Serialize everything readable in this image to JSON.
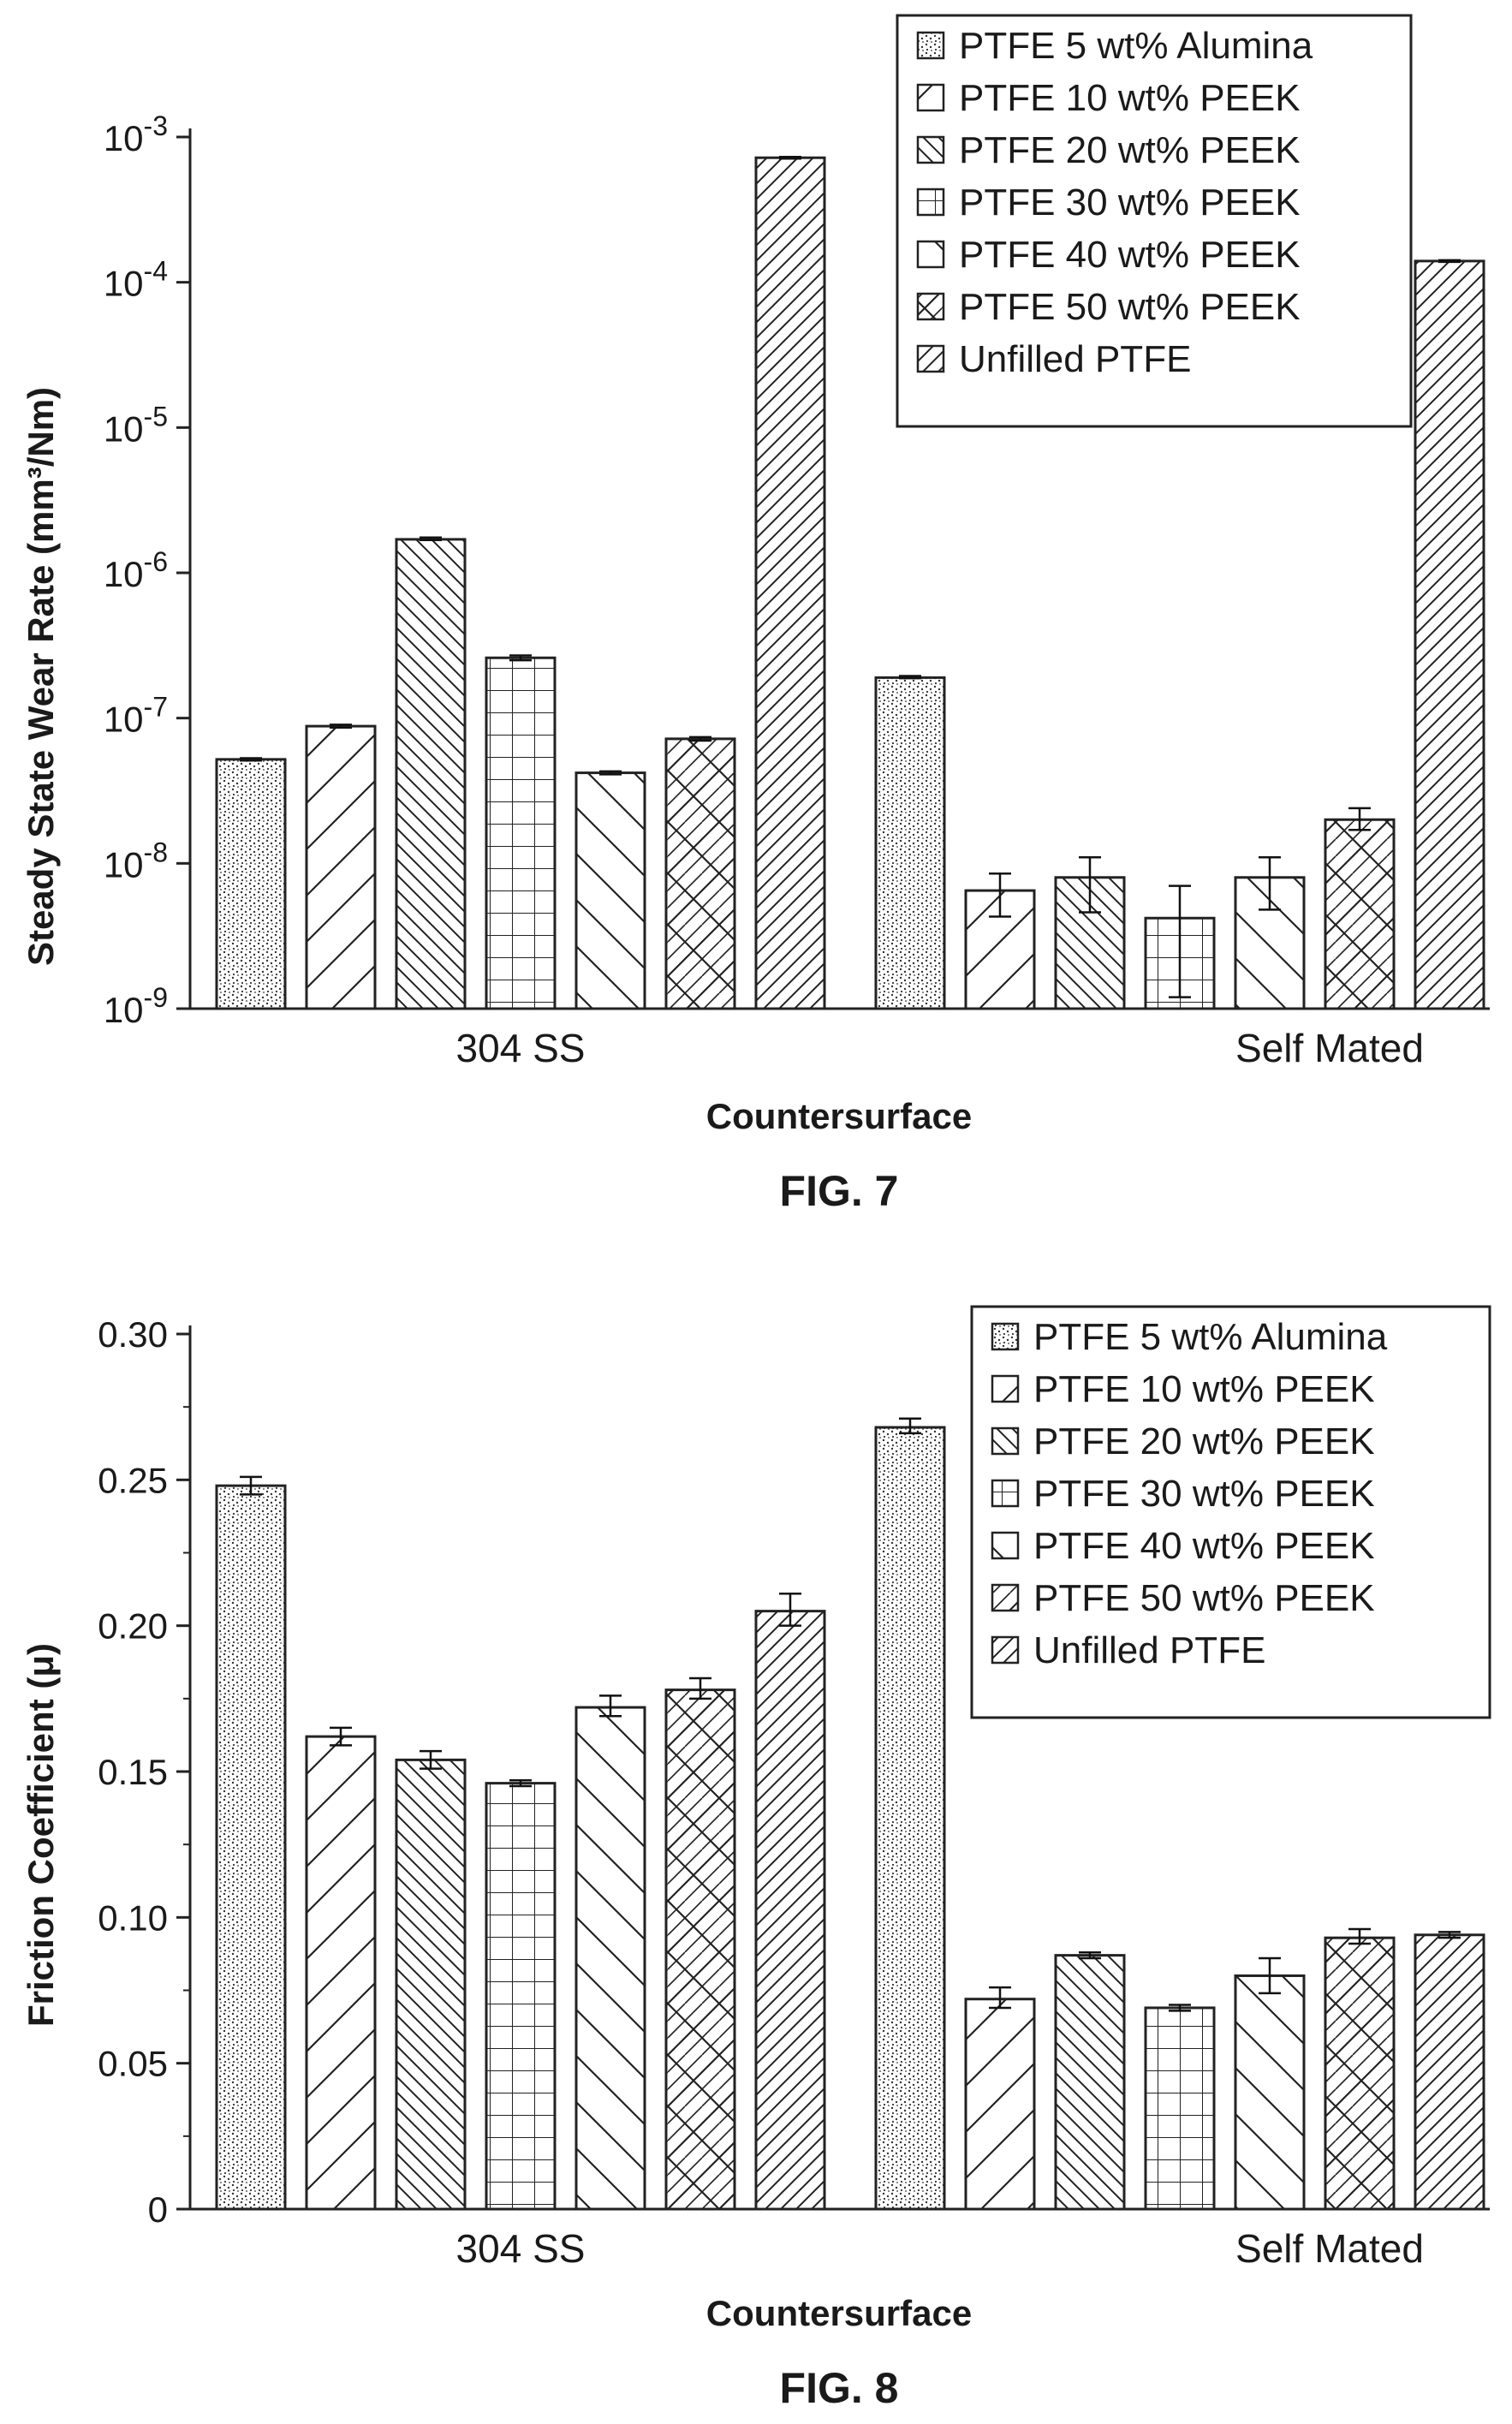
{
  "figures": [
    {
      "label": "FIG. 7"
    },
    {
      "label": "FIG. 8"
    }
  ],
  "chart_data": [
    {
      "type": "bar",
      "figure": "FIG. 7",
      "scale": "log",
      "ylabel": "Steady State Wear Rate (mm³/Nm)",
      "xlabel": "Countersurface",
      "ylim": [
        1e-09,
        0.001
      ],
      "y_ticks": [
        {
          "value": 1e-09,
          "base": "10",
          "exp": "-9"
        },
        {
          "value": 1e-08,
          "base": "10",
          "exp": "-8"
        },
        {
          "value": 1e-07,
          "base": "10",
          "exp": "-7"
        },
        {
          "value": 1e-06,
          "base": "10",
          "exp": "-6"
        },
        {
          "value": 1e-05,
          "base": "10",
          "exp": "-5"
        },
        {
          "value": 0.0001,
          "base": "10",
          "exp": "-4"
        },
        {
          "value": 0.001,
          "base": "10",
          "exp": "-3"
        }
      ],
      "categories": [
        "304 SS",
        "Self Mated"
      ],
      "legend_position": "top-right",
      "series": [
        {
          "name": "PTFE 5 wt% Alumina",
          "pattern": "dots",
          "values": [
            5.2e-08,
            1.9e-07
          ],
          "err_low": [
            5.1e-08,
            1.88e-07
          ],
          "err_high": [
            5.3e-08,
            1.95e-07
          ]
        },
        {
          "name": "PTFE 10 wt% PEEK",
          "pattern": "diag-up",
          "values": [
            8.8e-08,
            6.5e-09
          ],
          "err_low": [
            8.6e-08,
            4.3e-09
          ],
          "err_high": [
            9e-08,
            8.5e-09
          ]
        },
        {
          "name": "PTFE 20 wt% PEEK",
          "pattern": "diag-down-dense",
          "values": [
            1.7e-06,
            8e-09
          ],
          "err_low": [
            1.68e-06,
            4.6e-09
          ],
          "err_high": [
            1.75e-06,
            1.1e-08
          ]
        },
        {
          "name": "PTFE 30 wt% PEEK",
          "pattern": "grid",
          "values": [
            2.6e-07,
            4.2e-09
          ],
          "err_low": [
            2.5e-07,
            1.2e-09
          ],
          "err_high": [
            2.7e-07,
            7e-09
          ]
        },
        {
          "name": "PTFE 40 wt% PEEK",
          "pattern": "diag-down",
          "values": [
            4.2e-08,
            8e-09
          ],
          "err_low": [
            4.1e-08,
            4.8e-09
          ],
          "err_high": [
            4.3e-08,
            1.1e-08
          ]
        },
        {
          "name": "PTFE 50 wt% PEEK",
          "pattern": "crosshatch",
          "values": [
            7.2e-08,
            2e-08
          ],
          "err_low": [
            7e-08,
            1.7e-08
          ],
          "err_high": [
            7.4e-08,
            2.4e-08
          ]
        },
        {
          "name": "Unfilled PTFE",
          "pattern": "diag-up-dense",
          "values": [
            0.00072,
            0.00014
          ],
          "err_low": [
            0.00071,
            0.000138
          ],
          "err_high": [
            0.00073,
            0.000142
          ]
        }
      ]
    },
    {
      "type": "bar",
      "figure": "FIG. 8",
      "scale": "linear",
      "ylabel": "Friction Coefficient (μ)",
      "xlabel": "Countersurface",
      "ylim": [
        0,
        0.3
      ],
      "y_ticks": [
        {
          "value": 0,
          "text": "0"
        },
        {
          "value": 0.05,
          "text": "0.05"
        },
        {
          "value": 0.1,
          "text": "0.10"
        },
        {
          "value": 0.15,
          "text": "0.15"
        },
        {
          "value": 0.2,
          "text": "0.20"
        },
        {
          "value": 0.25,
          "text": "0.25"
        },
        {
          "value": 0.3,
          "text": "0.30"
        }
      ],
      "categories": [
        "304 SS",
        "Self Mated"
      ],
      "legend_position": "top-right",
      "series": [
        {
          "name": "PTFE 5 wt% Alumina",
          "pattern": "dots",
          "values": [
            0.248,
            0.268
          ],
          "err_low": [
            0.245,
            0.266
          ],
          "err_high": [
            0.251,
            0.271
          ]
        },
        {
          "name": "PTFE 10 wt% PEEK",
          "pattern": "diag-up",
          "values": [
            0.162,
            0.072
          ],
          "err_low": [
            0.159,
            0.069
          ],
          "err_high": [
            0.165,
            0.076
          ]
        },
        {
          "name": "PTFE 20 wt% PEEK",
          "pattern": "diag-down-dense",
          "values": [
            0.154,
            0.087
          ],
          "err_low": [
            0.151,
            0.086
          ],
          "err_high": [
            0.157,
            0.088
          ]
        },
        {
          "name": "PTFE 30 wt% PEEK",
          "pattern": "grid",
          "values": [
            0.146,
            0.069
          ],
          "err_low": [
            0.145,
            0.068
          ],
          "err_high": [
            0.147,
            0.07
          ]
        },
        {
          "name": "PTFE 40 wt% PEEK",
          "pattern": "diag-down",
          "values": [
            0.172,
            0.08
          ],
          "err_low": [
            0.169,
            0.074
          ],
          "err_high": [
            0.176,
            0.086
          ]
        },
        {
          "name": "PTFE 50 wt% PEEK",
          "pattern": "crosshatch",
          "values": [
            0.178,
            0.093
          ],
          "err_low": [
            0.175,
            0.091
          ],
          "err_high": [
            0.182,
            0.096
          ]
        },
        {
          "name": "Unfilled PTFE",
          "pattern": "diag-up-dense",
          "values": [
            0.205,
            0.094
          ],
          "err_low": [
            0.2,
            0.093
          ],
          "err_high": [
            0.211,
            0.095
          ]
        }
      ]
    }
  ]
}
